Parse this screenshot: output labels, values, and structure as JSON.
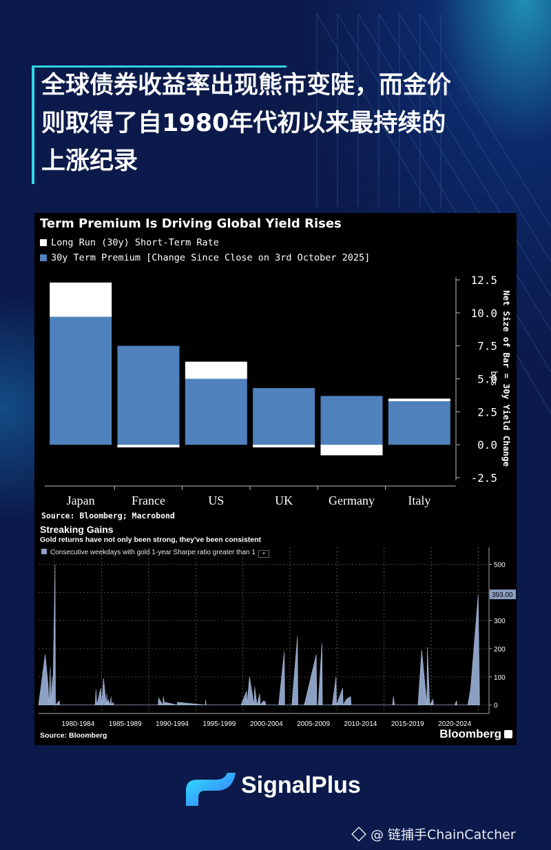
{
  "headline": {
    "line1": "全球债券收益率出现熊市变陡，而金价",
    "line2": "则取得了自1980年代初以来最持续的",
    "line3": "上涨纪录"
  },
  "colors": {
    "accent": "#2fd6e6",
    "bar_blue": "#4f81bd",
    "bar_white": "#ffffff",
    "area": "#8ca0c4"
  },
  "chart1": {
    "title": "Term Premium Is Driving Global Yield Rises",
    "legend": [
      "Long Run (30y) Short-Term Rate",
      "30y Term Premium [Change Since Close on 3rd October 2025]"
    ],
    "axis_label_line1": "Net Size of Bar = 30y Yield Change",
    "axis_label_line2": "bps",
    "source": "Source: Bloomberg; Macrobond"
  },
  "chart2": {
    "title": "Streaking Gains",
    "subtitle": "Gold returns have not only been strong, they've been consistent",
    "legend": "Consecutive weekdays with gold 1-year Sharpe ratio greater than 1",
    "last_value_label": "393.00",
    "source": "Source: Bloomberg",
    "brand": "Bloomberg"
  },
  "chart_data": [
    {
      "type": "bar",
      "title": "Term Premium Is Driving Global Yield Rises",
      "categories": [
        "Japan",
        "France",
        "US",
        "UK",
        "Germany",
        "Italy"
      ],
      "series": [
        {
          "name": "30y Term Premium [Change Since Close on 3rd October 2025]",
          "values": [
            9.7,
            7.5,
            5.0,
            4.3,
            3.7,
            3.3
          ]
        },
        {
          "name": "Long Run (30y) Short-Term Rate",
          "values": [
            2.6,
            -0.2,
            1.3,
            -0.2,
            -0.8,
            0.2
          ]
        }
      ],
      "ylabel": "Net Size of Bar = 30y Yield Change bps",
      "ylim": [
        -2.5,
        12.5
      ],
      "yticks": [
        12.5,
        10.0,
        7.5,
        5.0,
        2.5,
        0.0,
        -2.5
      ],
      "ytick_labels": [
        "12.5",
        "10.0",
        "7.5",
        "5.0",
        "2.5",
        "0.0",
        "-2.5"
      ],
      "y_axis_side": "right",
      "legend_position": "top-left"
    },
    {
      "type": "area",
      "title": "Streaking Gains",
      "categories": [
        "1980-1984",
        "1985-1989",
        "1990-1994",
        "1995-1999",
        "2000-2004",
        "2005-2009",
        "2010-2014",
        "2015-2019",
        "2020-2024"
      ],
      "xlim": [
        1978.3,
        2026.0
      ],
      "ylim": [
        -40,
        560
      ],
      "yticks": [
        0,
        100,
        200,
        300,
        400,
        500
      ],
      "y_axis_side": "right",
      "series": [
        {
          "name": "Consecutive weekdays with gold 1-year Sharpe ratio greater than 1",
          "x": [
            1978.3,
            1979.0,
            1979.3,
            1979.4,
            1979.55,
            1979.6,
            1979.75,
            1979.8,
            1980.05,
            1980.1,
            1980.5,
            1980.55,
            1984.3,
            1984.4,
            1984.5,
            1984.9,
            1985.0,
            1985.2,
            1985.5,
            1985.55,
            1985.6,
            1985.7,
            1985.9,
            1986.0,
            1986.05,
            1986.2,
            1986.3,
            1991.0,
            1991.05,
            1991.5,
            1991.55,
            1991.7,
            1991.75,
            1993.0,
            1993.05,
            1996.0,
            1996.05,
            1996.1,
            1999.8,
            2000.4,
            2000.45,
            2000.7,
            2001.2,
            2001.25,
            2001.5,
            2001.8,
            2001.85,
            2002.2,
            2002.4,
            2002.45,
            2003.8,
            2004.4,
            2004.45,
            2005.2,
            2005.8,
            2005.85,
            2006.5,
            2006.6,
            2007.8,
            2007.85,
            2008.0,
            2008.4,
            2008.45,
            2009.5,
            2009.9,
            2009.95,
            2010.6,
            2010.65,
            2011.0,
            2011.45,
            2011.5,
            2015.9,
            2016.0,
            2016.1,
            2018.6,
            2019.0,
            2019.55,
            2019.6,
            2019.85,
            2020.2,
            2020.25,
            2022.5,
            2022.7,
            2022.75,
            2023.0,
            2023.9,
            2024.2,
            2025.0,
            2025.15
          ],
          "values": [
            0,
            180,
            75,
            0,
            135,
            0,
            100,
            0,
            500,
            0,
            15,
            0,
            0,
            55,
            0,
            60,
            0,
            95,
            0,
            40,
            0,
            20,
            0,
            30,
            0,
            10,
            0,
            0,
            25,
            0,
            30,
            0,
            10,
            0,
            10,
            0,
            18,
            0,
            0,
            50,
            0,
            100,
            0,
            65,
            0,
            40,
            0,
            15,
            10,
            0,
            0,
            190,
            0,
            0,
            245,
            0,
            0,
            10,
            180,
            0,
            0,
            220,
            0,
            0,
            100,
            0,
            60,
            0,
            20,
            30,
            0,
            0,
            30,
            0,
            0,
            195,
            0,
            205,
            0,
            20,
            0,
            0,
            15,
            0,
            0,
            0,
            60,
            393,
            0
          ]
        }
      ]
    }
  ]
}
